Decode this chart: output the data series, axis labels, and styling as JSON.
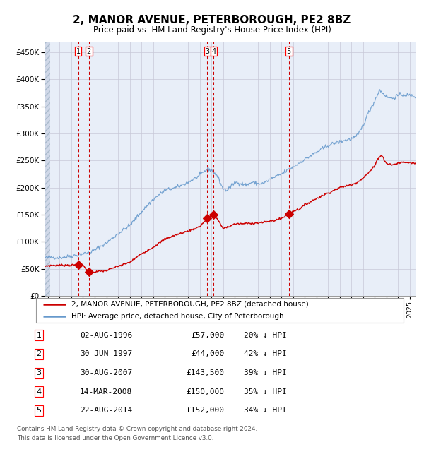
{
  "title": "2, MANOR AVENUE, PETERBOROUGH, PE2 8BZ",
  "subtitle": "Price paid vs. HM Land Registry's House Price Index (HPI)",
  "legend_label_red": "2, MANOR AVENUE, PETERBOROUGH, PE2 8BZ (detached house)",
  "legend_label_blue": "HPI: Average price, detached house, City of Peterborough",
  "footer_line1": "Contains HM Land Registry data © Crown copyright and database right 2024.",
  "footer_line2": "This data is licensed under the Open Government Licence v3.0.",
  "sales": [
    {
      "num": 1,
      "date_str": "02-AUG-1996",
      "date_dec": 1996.58,
      "price": 57000,
      "pct": "20% ↓ HPI"
    },
    {
      "num": 2,
      "date_str": "30-JUN-1997",
      "date_dec": 1997.5,
      "price": 44000,
      "pct": "42% ↓ HPI"
    },
    {
      "num": 3,
      "date_str": "30-AUG-2007",
      "date_dec": 2007.66,
      "price": 143500,
      "pct": "39% ↓ HPI"
    },
    {
      "num": 4,
      "date_str": "14-MAR-2008",
      "date_dec": 2008.2,
      "price": 150000,
      "pct": "35% ↓ HPI"
    },
    {
      "num": 5,
      "date_str": "22-AUG-2014",
      "date_dec": 2014.64,
      "price": 152000,
      "pct": "34% ↓ HPI"
    }
  ],
  "hpi_color": "#6699cc",
  "price_color": "#cc0000",
  "grid_color": "#c8c8d8",
  "ylim": [
    0,
    470000
  ],
  "xlim_start": 1993.7,
  "xlim_end": 2025.5,
  "yticks": [
    0,
    50000,
    100000,
    150000,
    200000,
    250000,
    300000,
    350000,
    400000,
    450000
  ],
  "ytick_labels": [
    "£0",
    "£50K",
    "£100K",
    "£150K",
    "£200K",
    "£250K",
    "£300K",
    "£350K",
    "£400K",
    "£450K"
  ],
  "hpi_keypoints": [
    [
      1993.7,
      70000
    ],
    [
      1994.0,
      72000
    ],
    [
      1995.0,
      71000
    ],
    [
      1995.5,
      72000
    ],
    [
      1996.0,
      74000
    ],
    [
      1997.0,
      78000
    ],
    [
      1997.5,
      80000
    ],
    [
      1998.0,
      85000
    ],
    [
      1999.0,
      98000
    ],
    [
      2000.0,
      115000
    ],
    [
      2001.0,
      130000
    ],
    [
      2002.0,
      155000
    ],
    [
      2003.0,
      178000
    ],
    [
      2004.0,
      195000
    ],
    [
      2005.0,
      200000
    ],
    [
      2006.0,
      210000
    ],
    [
      2007.0,
      222000
    ],
    [
      2007.4,
      230000
    ],
    [
      2007.7,
      235000
    ],
    [
      2008.0,
      232000
    ],
    [
      2008.5,
      222000
    ],
    [
      2009.0,
      198000
    ],
    [
      2009.3,
      195000
    ],
    [
      2009.6,
      200000
    ],
    [
      2010.0,
      210000
    ],
    [
      2010.5,
      208000
    ],
    [
      2011.0,
      205000
    ],
    [
      2011.5,
      210000
    ],
    [
      2012.0,
      207000
    ],
    [
      2012.5,
      208000
    ],
    [
      2013.0,
      215000
    ],
    [
      2013.5,
      220000
    ],
    [
      2014.0,
      225000
    ],
    [
      2014.5,
      232000
    ],
    [
      2015.0,
      238000
    ],
    [
      2016.0,
      252000
    ],
    [
      2017.0,
      265000
    ],
    [
      2018.0,
      278000
    ],
    [
      2019.0,
      285000
    ],
    [
      2020.0,
      290000
    ],
    [
      2020.5,
      295000
    ],
    [
      2021.0,
      315000
    ],
    [
      2021.5,
      340000
    ],
    [
      2022.0,
      360000
    ],
    [
      2022.4,
      380000
    ],
    [
      2022.7,
      375000
    ],
    [
      2023.0,
      368000
    ],
    [
      2023.5,
      365000
    ],
    [
      2024.0,
      370000
    ],
    [
      2024.5,
      372000
    ],
    [
      2025.0,
      370000
    ],
    [
      2025.5,
      368000
    ]
  ],
  "price_keypoints": [
    [
      1993.7,
      55000
    ],
    [
      1994.0,
      56000
    ],
    [
      1995.0,
      57000
    ],
    [
      1996.0,
      57000
    ],
    [
      1996.58,
      57000
    ],
    [
      1997.0,
      57000
    ],
    [
      1997.5,
      44000
    ],
    [
      1997.8,
      44000
    ],
    [
      1998.0,
      44500
    ],
    [
      1999.0,
      47000
    ],
    [
      2000.0,
      55000
    ],
    [
      2001.0,
      62000
    ],
    [
      2002.0,
      78000
    ],
    [
      2003.0,
      90000
    ],
    [
      2004.0,
      105000
    ],
    [
      2005.0,
      113000
    ],
    [
      2006.0,
      120000
    ],
    [
      2007.0,
      128000
    ],
    [
      2007.66,
      143500
    ],
    [
      2008.0,
      148000
    ],
    [
      2008.2,
      150000
    ],
    [
      2008.5,
      142000
    ],
    [
      2009.0,
      125000
    ],
    [
      2009.5,
      128000
    ],
    [
      2010.0,
      133000
    ],
    [
      2010.5,
      133000
    ],
    [
      2011.0,
      134000
    ],
    [
      2011.5,
      134500
    ],
    [
      2012.0,
      135000
    ],
    [
      2012.5,
      136000
    ],
    [
      2013.0,
      138000
    ],
    [
      2013.5,
      140000
    ],
    [
      2014.0,
      143000
    ],
    [
      2014.64,
      152000
    ],
    [
      2015.0,
      157000
    ],
    [
      2015.5,
      160000
    ],
    [
      2016.0,
      168000
    ],
    [
      2017.0,
      180000
    ],
    [
      2018.0,
      190000
    ],
    [
      2018.5,
      195000
    ],
    [
      2019.0,
      200000
    ],
    [
      2019.5,
      203000
    ],
    [
      2020.0,
      205000
    ],
    [
      2020.5,
      210000
    ],
    [
      2021.0,
      218000
    ],
    [
      2021.5,
      228000
    ],
    [
      2022.0,
      240000
    ],
    [
      2022.3,
      255000
    ],
    [
      2022.6,
      260000
    ],
    [
      2022.8,
      252000
    ],
    [
      2023.0,
      245000
    ],
    [
      2023.5,
      242000
    ],
    [
      2024.0,
      245000
    ],
    [
      2024.5,
      247000
    ],
    [
      2025.0,
      246000
    ],
    [
      2025.5,
      245000
    ]
  ]
}
